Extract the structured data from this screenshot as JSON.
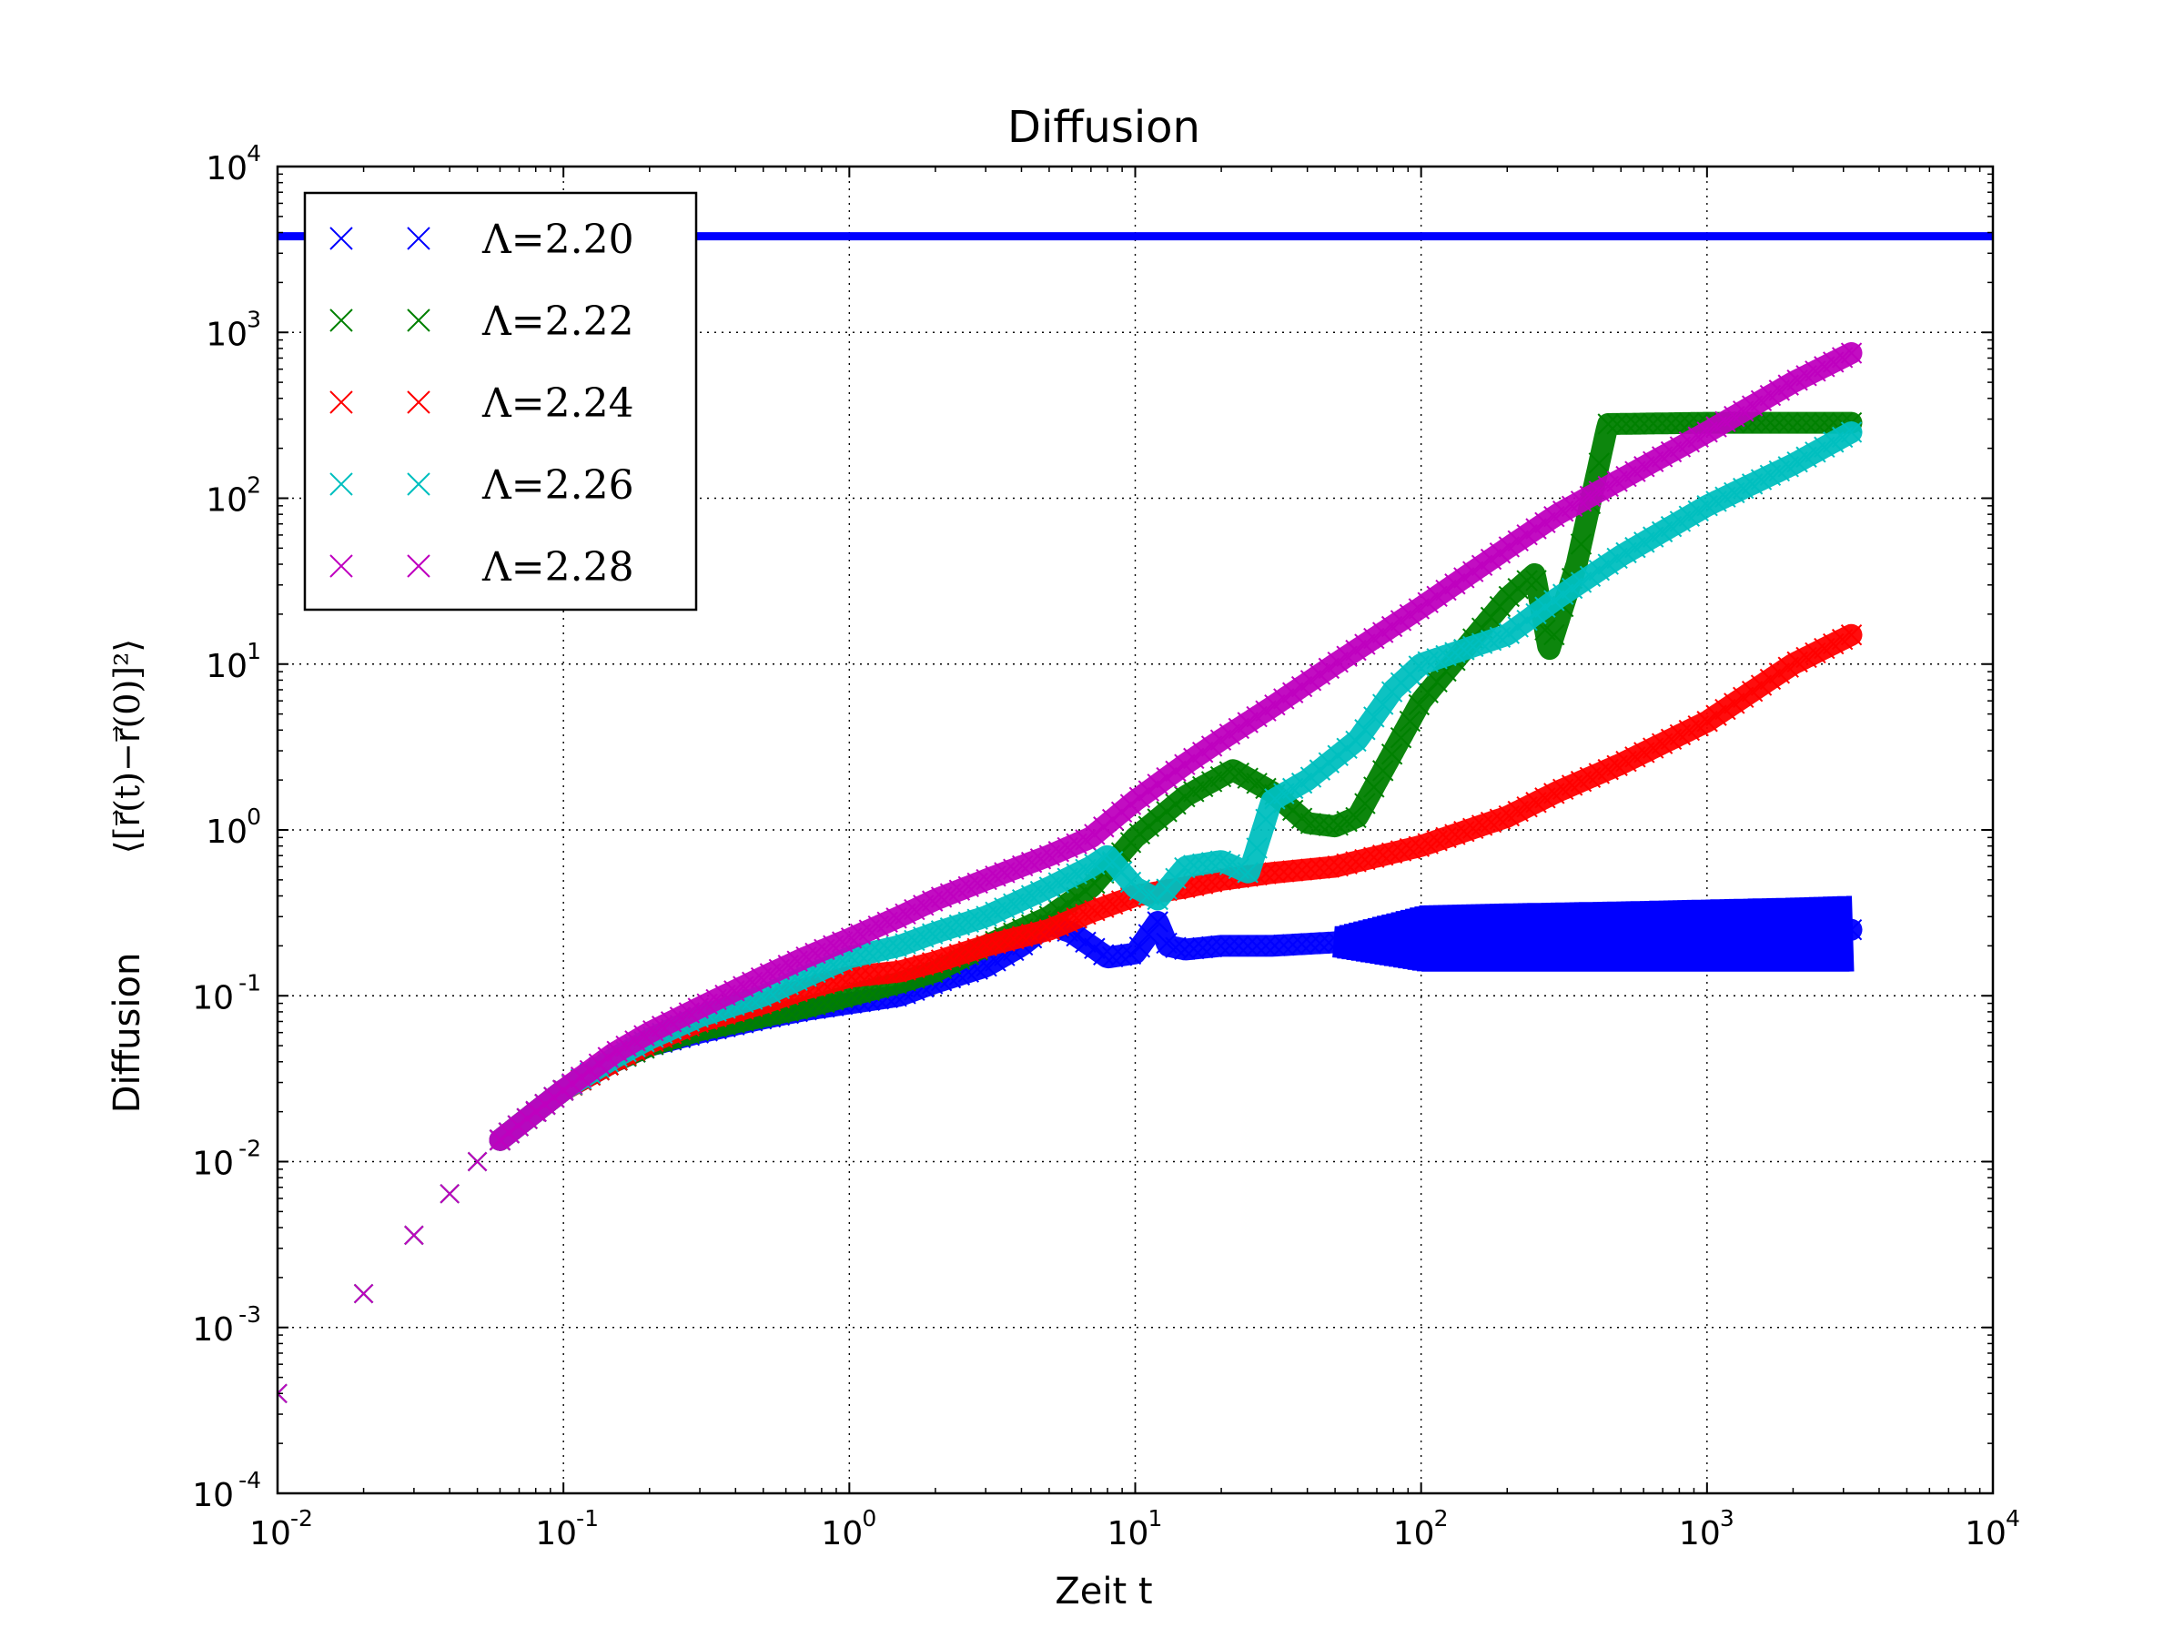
{
  "chart_data": {
    "type": "scatter",
    "title": "Diffusion",
    "xlabel": "Zeit t",
    "ylabel": "Diffusion",
    "ylabel_math": "⟨[r⃗(t)−r⃗(0)]²⟩",
    "xscale": "log",
    "yscale": "log",
    "xlim": [
      0.01,
      10000
    ],
    "ylim": [
      0.0001,
      10000
    ],
    "grid": true,
    "legend_position": "top-left",
    "x_ticks": [
      {
        "base": "10",
        "exp": "-2"
      },
      {
        "base": "10",
        "exp": "-1"
      },
      {
        "base": "10",
        "exp": "0"
      },
      {
        "base": "10",
        "exp": "1"
      },
      {
        "base": "10",
        "exp": "2"
      },
      {
        "base": "10",
        "exp": "3"
      },
      {
        "base": "10",
        "exp": "4"
      }
    ],
    "y_ticks": [
      {
        "base": "10",
        "exp": "-4"
      },
      {
        "base": "10",
        "exp": "-3"
      },
      {
        "base": "10",
        "exp": "-2"
      },
      {
        "base": "10",
        "exp": "-1"
      },
      {
        "base": "10",
        "exp": "0"
      },
      {
        "base": "10",
        "exp": "1"
      },
      {
        "base": "10",
        "exp": "2"
      },
      {
        "base": "10",
        "exp": "3"
      },
      {
        "base": "10",
        "exp": "4"
      }
    ],
    "series": [
      {
        "name": "Λ=2.20",
        "color": "#0000ff",
        "marker": "x",
        "x": [
          0.01,
          0.02,
          0.03,
          0.04,
          0.05,
          0.06,
          0.08,
          0.1,
          0.15,
          0.2,
          0.3,
          0.5,
          0.7,
          1,
          1.5,
          2,
          3,
          4,
          5,
          6,
          7,
          8,
          10,
          12,
          13,
          15,
          20,
          30,
          50,
          100,
          200,
          500,
          1000,
          2000,
          3200
        ],
        "y": [
          0.0004,
          0.0016,
          0.0036,
          0.0064,
          0.01,
          0.0135,
          0.02,
          0.027,
          0.04,
          0.05,
          0.06,
          0.073,
          0.082,
          0.09,
          0.1,
          0.12,
          0.15,
          0.2,
          0.27,
          0.24,
          0.2,
          0.17,
          0.18,
          0.28,
          0.2,
          0.19,
          0.2,
          0.2,
          0.21,
          0.22,
          0.22,
          0.23,
          0.24,
          0.24,
          0.25
        ],
        "y_low": [
          null,
          null,
          null,
          null,
          null,
          null,
          null,
          null,
          null,
          null,
          null,
          null,
          null,
          null,
          null,
          null,
          null,
          null,
          null,
          null,
          null,
          null,
          null,
          null,
          null,
          null,
          null,
          null,
          0.17,
          0.14,
          0.14,
          0.14,
          0.14,
          0.14,
          0.14
        ],
        "y_high": [
          null,
          null,
          null,
          null,
          null,
          null,
          null,
          null,
          null,
          null,
          null,
          null,
          null,
          null,
          null,
          null,
          null,
          null,
          null,
          null,
          null,
          null,
          null,
          null,
          null,
          null,
          null,
          null,
          0.26,
          0.35,
          0.36,
          0.37,
          0.38,
          0.39,
          0.4
        ]
      },
      {
        "name": "Λ=2.22",
        "color": "#008000",
        "marker": "x",
        "x": [
          0.01,
          0.02,
          0.03,
          0.04,
          0.05,
          0.06,
          0.08,
          0.1,
          0.15,
          0.2,
          0.3,
          0.5,
          0.7,
          1,
          1.5,
          2,
          3,
          5,
          7,
          10,
          15,
          22,
          30,
          40,
          50,
          60,
          100,
          200,
          250,
          280,
          350,
          450,
          1000,
          2000,
          3200
        ],
        "y": [
          0.0004,
          0.0016,
          0.0036,
          0.0064,
          0.01,
          0.0135,
          0.02,
          0.027,
          0.04,
          0.05,
          0.062,
          0.075,
          0.085,
          0.1,
          0.12,
          0.14,
          0.2,
          0.3,
          0.45,
          0.9,
          1.6,
          2.3,
          1.7,
          1.1,
          1.05,
          1.2,
          6.0,
          25,
          35,
          12,
          40,
          280,
          285,
          285,
          285
        ]
      },
      {
        "name": "Λ=2.24",
        "color": "#ff0000",
        "marker": "x",
        "x": [
          0.01,
          0.02,
          0.03,
          0.04,
          0.05,
          0.06,
          0.08,
          0.1,
          0.15,
          0.2,
          0.3,
          0.5,
          0.7,
          1,
          1.5,
          2,
          3,
          5,
          7,
          10,
          15,
          20,
          30,
          50,
          100,
          200,
          300,
          500,
          1000,
          2000,
          3200
        ],
        "y": [
          0.0004,
          0.0016,
          0.0036,
          0.0064,
          0.01,
          0.0135,
          0.02,
          0.027,
          0.04,
          0.052,
          0.07,
          0.09,
          0.11,
          0.13,
          0.14,
          0.16,
          0.2,
          0.25,
          0.32,
          0.4,
          0.45,
          0.5,
          0.55,
          0.6,
          0.8,
          1.2,
          1.7,
          2.5,
          4.5,
          10,
          15
        ]
      },
      {
        "name": "Λ=2.26",
        "color": "#00bfbf",
        "marker": "x",
        "x": [
          0.01,
          0.02,
          0.03,
          0.04,
          0.05,
          0.06,
          0.08,
          0.1,
          0.15,
          0.2,
          0.3,
          0.5,
          0.7,
          1,
          1.5,
          2,
          3,
          5,
          7,
          8,
          10,
          12,
          15,
          20,
          25,
          30,
          40,
          60,
          80,
          100,
          200,
          300,
          500,
          1000,
          2000,
          3200
        ],
        "y": [
          0.0004,
          0.0016,
          0.0036,
          0.0064,
          0.01,
          0.0135,
          0.02,
          0.027,
          0.042,
          0.055,
          0.075,
          0.1,
          0.13,
          0.17,
          0.2,
          0.24,
          0.3,
          0.45,
          0.6,
          0.7,
          0.45,
          0.38,
          0.6,
          0.65,
          0.55,
          1.5,
          2.0,
          3.5,
          7.0,
          10,
          15,
          25,
          45,
          90,
          160,
          250
        ]
      },
      {
        "name": "Λ=2.28",
        "color": "#bf00bf",
        "marker": "x",
        "x": [
          0.01,
          0.02,
          0.03,
          0.04,
          0.05,
          0.06,
          0.08,
          0.1,
          0.15,
          0.2,
          0.3,
          0.5,
          0.7,
          1,
          1.5,
          2,
          3,
          5,
          7,
          10,
          15,
          20,
          30,
          50,
          100,
          200,
          300,
          500,
          1000,
          2000,
          3200
        ],
        "y": [
          0.0004,
          0.0016,
          0.0036,
          0.0064,
          0.01,
          0.0135,
          0.02,
          0.027,
          0.045,
          0.06,
          0.085,
          0.13,
          0.17,
          0.22,
          0.3,
          0.38,
          0.5,
          0.7,
          0.9,
          1.5,
          2.5,
          3.5,
          5.5,
          10,
          22,
          50,
          80,
          130,
          250,
          500,
          750
        ]
      }
    ],
    "horizontal_line": {
      "y": 3800,
      "color": "#0000ff"
    }
  }
}
